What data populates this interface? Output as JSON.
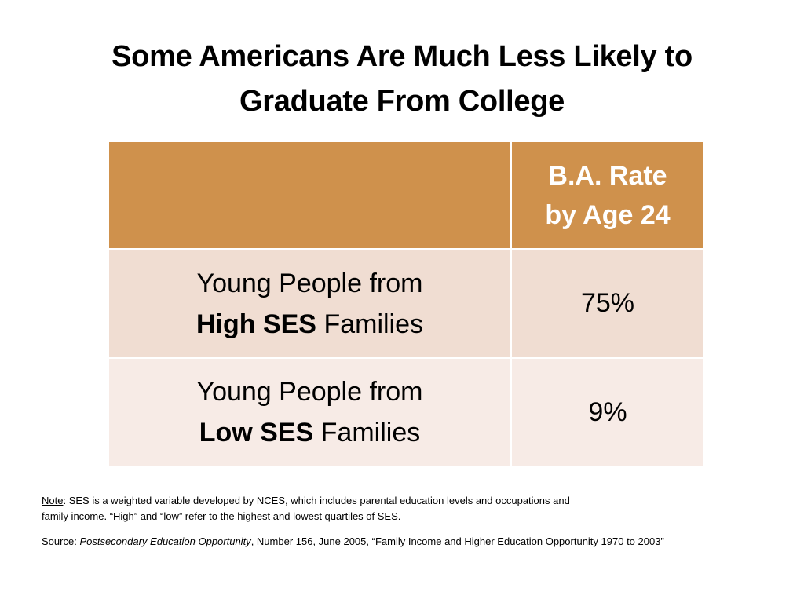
{
  "title": {
    "line1": "Some Americans Are Much Less Likely to",
    "line2": "Graduate From College"
  },
  "table": {
    "header": {
      "empty": "",
      "col2_line1": "B.A. Rate",
      "col2_line2": "by Age 24"
    },
    "rows": [
      {
        "line1": "Young People from",
        "bold": "High SES",
        "rest": " Families",
        "value": "75%"
      },
      {
        "line1": "Young People from",
        "bold": "Low SES",
        "rest": " Families",
        "value": "9%"
      }
    ]
  },
  "note": {
    "label": "Note",
    "text1": ": SES is a weighted variable developed by NCES, which includes parental education levels and occupations and",
    "text2": "family income. “High” and “low” refer to the highest and lowest quartiles of SES."
  },
  "source": {
    "label": "Source",
    "sep": ": ",
    "publication": "Postsecondary Education Opportunity",
    "rest": ", Number 156, June 2005, “Family Income and Higher Education Opportunity 1970 to 2003”"
  },
  "colors": {
    "header_bg": "#cf914c",
    "row1_bg": "#f0ddd2",
    "row2_bg": "#f7ebe6"
  }
}
